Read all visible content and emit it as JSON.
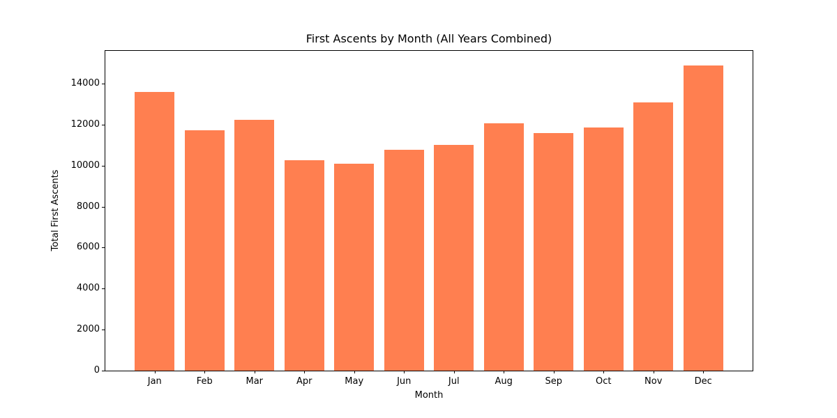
{
  "chart_data": {
    "type": "bar",
    "title": "First Ascents by Month (All Years Combined)",
    "xlabel": "Month",
    "ylabel": "Total First Ascents",
    "categories": [
      "Jan",
      "Feb",
      "Mar",
      "Apr",
      "May",
      "Jun",
      "Jul",
      "Aug",
      "Sep",
      "Oct",
      "Nov",
      "Dec"
    ],
    "values": [
      13600,
      11720,
      12230,
      10250,
      10100,
      10780,
      11000,
      12060,
      11590,
      11850,
      13070,
      14870
    ],
    "ylim": [
      0,
      15600
    ],
    "yticks": [
      0,
      2000,
      4000,
      6000,
      8000,
      10000,
      12000,
      14000
    ],
    "bar_color": "#FF7F50",
    "axis_color": "#000000",
    "background_color": "#ffffff",
    "grid": false,
    "legend_position": "none"
  }
}
